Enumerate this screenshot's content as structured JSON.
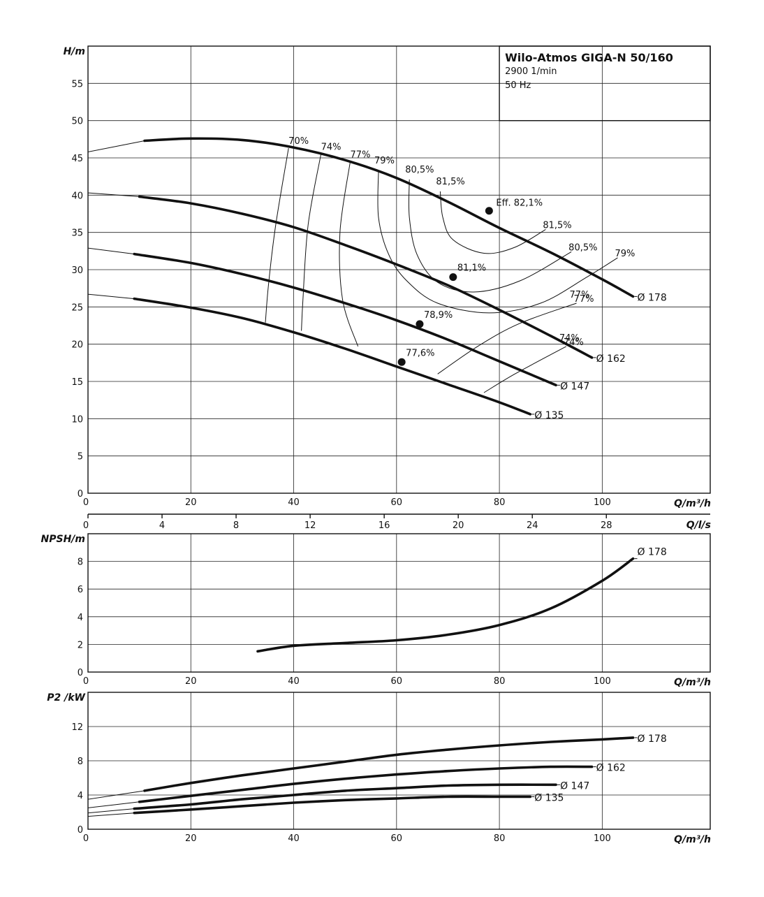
{
  "chart_data": [
    {
      "type": "line",
      "id": "head",
      "title": "Wilo-Atmos GIGA-N 50/160",
      "subtitle_lines": [
        "2900 1/min",
        "50 Hz"
      ],
      "ylabel": "H/m",
      "xlabel": "Q/m³/h",
      "xlim": [
        0,
        121
      ],
      "ylim": [
        0,
        60
      ],
      "x_ticks": [
        0,
        20,
        40,
        60,
        80,
        100
      ],
      "y_ticks": [
        0,
        5,
        10,
        15,
        20,
        25,
        30,
        35,
        40,
        45,
        50,
        55
      ],
      "secondary_x": {
        "label": "Q/l/s",
        "ticks": [
          0,
          4,
          8,
          12,
          16,
          20,
          24,
          28
        ],
        "factor": 3.6
      },
      "grid": true,
      "series": [
        {
          "name": "Ø 178",
          "x": [
            0,
            11,
            20,
            30,
            40,
            50,
            60,
            70,
            80,
            90,
            100,
            106
          ],
          "y": [
            45.8,
            47.3,
            47.6,
            47.4,
            46.4,
            44.7,
            42.3,
            39.1,
            35.6,
            32.3,
            28.7,
            26.4
          ],
          "thin_x_end": 11
        },
        {
          "name": "Ø 162",
          "x": [
            0,
            10,
            20,
            30,
            40,
            50,
            60,
            70,
            80,
            90,
            98
          ],
          "y": [
            40.3,
            39.8,
            38.9,
            37.5,
            35.7,
            33.3,
            30.7,
            27.9,
            24.6,
            21.1,
            18.2
          ],
          "thin_x_end": 10
        },
        {
          "name": "Ø 147",
          "x": [
            0,
            9,
            20,
            30,
            40,
            50,
            60,
            70,
            80,
            91
          ],
          "y": [
            32.9,
            32.1,
            30.9,
            29.4,
            27.6,
            25.5,
            23.2,
            20.6,
            17.7,
            14.5
          ],
          "thin_x_end": 9
        },
        {
          "name": "Ø 135",
          "x": [
            0,
            9,
            20,
            30,
            40,
            50,
            60,
            70,
            80,
            86
          ],
          "y": [
            26.7,
            26.1,
            24.9,
            23.5,
            21.6,
            19.4,
            17.0,
            14.6,
            12.2,
            10.6
          ],
          "thin_x_end": 9
        }
      ],
      "efficiency_contours": [
        {
          "label": "70%",
          "points": [
            [
              34.5,
              22.9
            ],
            [
              35.1,
              28
            ],
            [
              36.5,
              36
            ],
            [
              39,
              46.3
            ]
          ]
        },
        {
          "label": "74%",
          "points": [
            [
              41.5,
              21.8
            ],
            [
              41.8,
              26
            ],
            [
              42.8,
              36
            ],
            [
              45.3,
              45.5
            ]
          ]
        },
        {
          "label": "77%",
          "points": [
            [
              52.5,
              19.7
            ],
            [
              49.5,
              26
            ],
            [
              49,
              35
            ],
            [
              51,
              44.5
            ]
          ]
        },
        {
          "label": "79%",
          "points": [
            [
              56.5,
              43.3
            ],
            [
              56.5,
              37
            ],
            [
              58.5,
              32
            ],
            [
              62,
              28.5
            ],
            [
              68,
              25.5
            ],
            [
              78,
              24.2
            ],
            [
              88,
              25.5
            ],
            [
              97,
              29
            ],
            [
              103,
              31.6
            ]
          ]
        },
        {
          "label": "80,5%",
          "points": [
            [
              62.5,
              42.1
            ],
            [
              62.5,
              37
            ],
            [
              64,
              32
            ],
            [
              68,
              28.3
            ],
            [
              75,
              27
            ],
            [
              84,
              28.5
            ],
            [
              94,
              32.4
            ]
          ]
        },
        {
          "label": "81,5%",
          "points": [
            [
              68.5,
              40.5
            ],
            [
              69,
              37
            ],
            [
              71,
              34
            ],
            [
              77,
              32.2
            ],
            [
              83,
              33
            ],
            [
              89,
              35.4
            ]
          ]
        },
        {
          "label": "77%",
          "points": [
            [
              68,
              16
            ],
            [
              76,
              19.8
            ],
            [
              84,
              22.8
            ],
            [
              95,
              25.5
            ]
          ]
        },
        {
          "label": "74%",
          "points": [
            [
              77,
              13.5
            ],
            [
              83,
              16
            ],
            [
              93,
              19.7
            ]
          ]
        }
      ],
      "points": [
        {
          "label": "Eff. 82,1%",
          "x": 78,
          "y": 37.9
        },
        {
          "label": "81,1%",
          "x": 71,
          "y": 29.0
        },
        {
          "label": "78,9%",
          "x": 64.5,
          "y": 22.7
        },
        {
          "label": "77,6%",
          "x": 61,
          "y": 17.6
        }
      ]
    },
    {
      "type": "line",
      "id": "npsh",
      "ylabel": "NPSH/m",
      "xlabel": "Q/m³/h",
      "xlim": [
        0,
        121
      ],
      "ylim": [
        0,
        10
      ],
      "x_ticks": [
        0,
        20,
        40,
        60,
        80,
        100
      ],
      "y_ticks": [
        0,
        2,
        4,
        6,
        8
      ],
      "grid": true,
      "series": [
        {
          "name": "Ø 178",
          "x": [
            33,
            40,
            50,
            60,
            70,
            80,
            90,
            100,
            106
          ],
          "y": [
            1.5,
            1.9,
            2.1,
            2.3,
            2.7,
            3.4,
            4.6,
            6.6,
            8.2
          ]
        }
      ]
    },
    {
      "type": "line",
      "id": "power",
      "ylabel": "P2 /kW",
      "xlabel": "Q/m³/h",
      "xlim": [
        0,
        121
      ],
      "ylim": [
        0,
        16
      ],
      "x_ticks": [
        0,
        20,
        40,
        60,
        80,
        100
      ],
      "y_ticks": [
        0,
        4,
        8,
        12
      ],
      "grid": true,
      "series": [
        {
          "name": "Ø 178",
          "x": [
            0,
            11,
            20,
            30,
            40,
            50,
            60,
            70,
            80,
            90,
            100,
            106
          ],
          "y": [
            3.5,
            4.5,
            5.4,
            6.3,
            7.1,
            7.9,
            8.7,
            9.3,
            9.8,
            10.2,
            10.5,
            10.7
          ],
          "thin_x_end": 11
        },
        {
          "name": "Ø 162",
          "x": [
            0,
            10,
            20,
            30,
            40,
            50,
            60,
            70,
            80,
            90,
            98
          ],
          "y": [
            2.5,
            3.2,
            3.9,
            4.6,
            5.3,
            5.9,
            6.4,
            6.8,
            7.1,
            7.3,
            7.3
          ],
          "thin_x_end": 10
        },
        {
          "name": "Ø 147",
          "x": [
            0,
            9,
            20,
            30,
            40,
            50,
            60,
            70,
            80,
            91
          ],
          "y": [
            1.9,
            2.4,
            2.9,
            3.5,
            4.0,
            4.5,
            4.8,
            5.1,
            5.2,
            5.2
          ],
          "thin_x_end": 9
        },
        {
          "name": "Ø 135",
          "x": [
            0,
            9,
            20,
            30,
            40,
            50,
            60,
            70,
            80,
            86
          ],
          "y": [
            1.5,
            1.9,
            2.3,
            2.7,
            3.1,
            3.4,
            3.6,
            3.8,
            3.8,
            3.8
          ],
          "thin_x_end": 9
        }
      ]
    }
  ]
}
